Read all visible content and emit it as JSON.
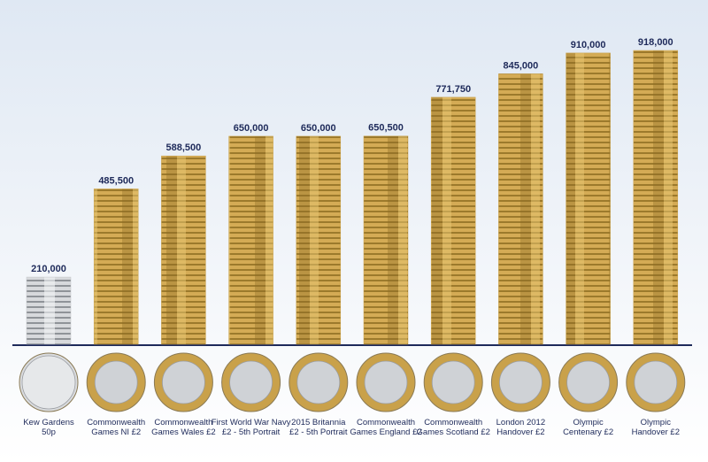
{
  "chart_data": {
    "type": "bar",
    "categories": [
      "Kew Gardens\n50p",
      "Commonwealth\nGames NI £2",
      "Commonwealth\nGames Wales £2",
      "First World War Navy\n£2 - 5th Portrait",
      "2015 Britannia\n£2 - 5th Portrait",
      "Commonwealth\nGames England £2",
      "Commonwealth\nGames Scotland £2",
      "London 2012\nHandover £2",
      "Olympic\nCentenary £2",
      "Olympic\nHandover £2"
    ],
    "values": [
      210000,
      485500,
      588500,
      650000,
      650000,
      650500,
      771750,
      845000,
      910000,
      918000
    ],
    "value_labels": [
      "210,000",
      "485,500",
      "588,500",
      "650,000",
      "650,000",
      "650,500",
      "771,750",
      "845,000",
      "910,000",
      "918,000"
    ],
    "colors": [
      "#c4c6c9",
      "#c9a14a",
      "#c9a14a",
      "#c9a14a",
      "#c9a14a",
      "#c9a14a",
      "#c9a14a",
      "#c9a14a",
      "#c9a14a",
      "#c9a14a"
    ]
  }
}
